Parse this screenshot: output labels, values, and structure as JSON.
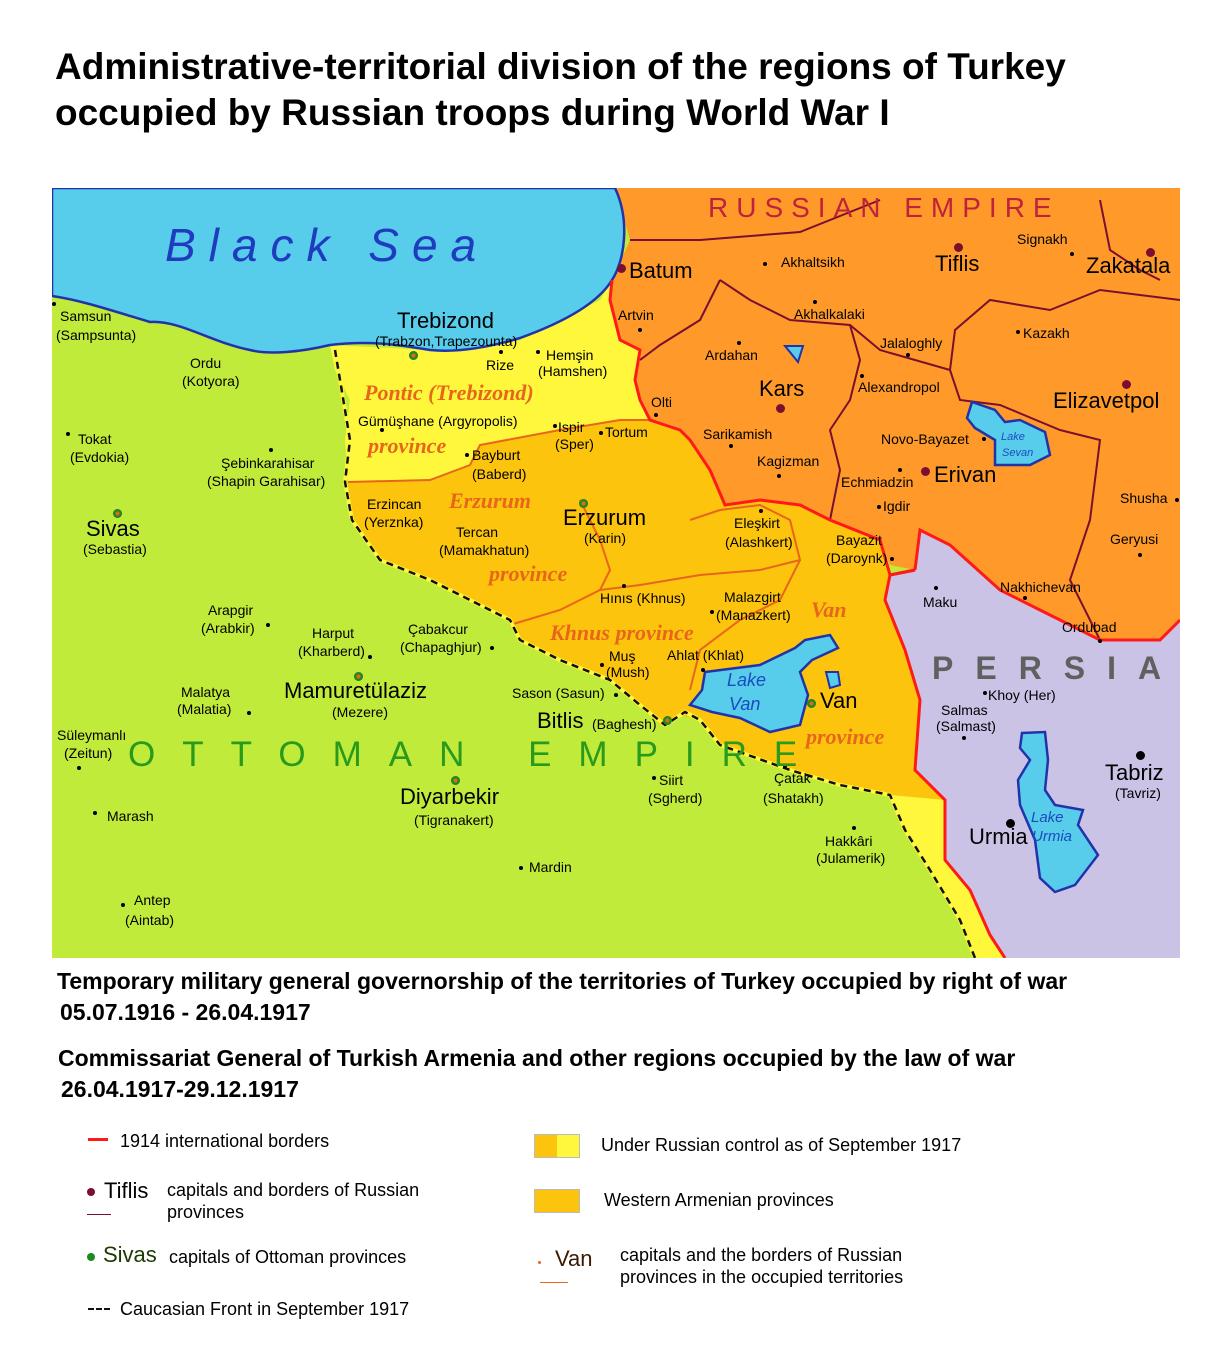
{
  "title": {
    "line1": "Administrative-territorial division of the regions of Turkey",
    "line2": "occupied by Russian troops during World War I"
  },
  "map": {
    "regions": {
      "sea": "Black Sea",
      "russia": "RUSSIAN EMPIRE",
      "ottoman": "OTTOMAN EMPIRE",
      "persia": "PERSIA"
    },
    "colors": {
      "sea": "#58cceb",
      "ottoman": "#c0eb3a",
      "pontic": "#fff73c",
      "western_armenia": "#fcc40c",
      "russia": "#ff9a2a",
      "persia": "#cbc3e6",
      "border_1914": "#ff1a1a",
      "russian_province_border": "#7a0f30",
      "occupied_province_border": "#e8661c"
    },
    "provinces": {
      "pontic": "Pontic (Trebizond)",
      "pontic_2": "province",
      "erzurum": "Erzurum",
      "erzurum_2": "province",
      "khnus": "Khnus province",
      "van": "Van",
      "van_2": "province"
    },
    "lakes": {
      "van_1": "Lake",
      "van_2": "Van",
      "sevan_1": "Lake",
      "sevan_2": "Sevan",
      "urmia_1": "Lake",
      "urmia_2": "Urmia"
    },
    "places": {
      "samsun": {
        "name": "Samsun",
        "alt": "(Sampsunta)"
      },
      "trebizond": {
        "name": "Trebizond",
        "alt": "(Trabzon,Trapezounta)"
      },
      "rize": {
        "name": "Rize"
      },
      "hemsin": {
        "name": "Hemşin",
        "alt": "(Hamshen)"
      },
      "ordu": {
        "name": "Ordu",
        "alt": "(Kotyora)"
      },
      "tokat": {
        "name": "Tokat",
        "alt": "(Evdokia)"
      },
      "sebinkarahisar": {
        "name": "Şebinkarahisar",
        "alt": "(Shapin Garahisar)"
      },
      "sivas": {
        "name": "Sivas",
        "alt": "(Sebastia)"
      },
      "gumushane": {
        "name": "Gümüşhane (Argyropolis)"
      },
      "ispir": {
        "name": "Ispir",
        "alt": "(Sper)"
      },
      "tortum": {
        "name": "Tortum"
      },
      "bayburt": {
        "name": "Bayburt",
        "alt": "(Baberd)"
      },
      "artvin": {
        "name": "Artvin"
      },
      "olti": {
        "name": "Olti"
      },
      "erzincan": {
        "name": "Erzincan",
        "alt": "(Yerznka)"
      },
      "tercan": {
        "name": "Tercan",
        "alt": "(Mamakhatun)"
      },
      "erzurum": {
        "name": "Erzurum",
        "alt": "(Karin)"
      },
      "eleskirt": {
        "name": "Eleşkirt",
        "alt": "(Alashkert)"
      },
      "bayazit": {
        "name": "Bayazit",
        "alt": "(Daroynk)"
      },
      "hinis": {
        "name": "Hınıs (Khnus)"
      },
      "malazgirt": {
        "name": "Malazgirt",
        "alt": "(Manazkert)"
      },
      "mus": {
        "name": "Muş",
        "alt": "(Mush)"
      },
      "ahlat": {
        "name": "Ahlat (Khlat)"
      },
      "sason": {
        "name": "Sason (Sasun)"
      },
      "bitlis": {
        "name": "Bitlis",
        "alt": "(Baghesh)"
      },
      "van": {
        "name": "Van"
      },
      "arapgir": {
        "name": "Arapgir",
        "alt": "(Arabkir)"
      },
      "harput": {
        "name": "Harput",
        "alt": "(Kharberd)"
      },
      "cabakcur": {
        "name": "Çabakcur",
        "alt": "(Chapaghjur)"
      },
      "mamuretulaziz": {
        "name": "Mamuretülaziz",
        "alt": "(Mezere)"
      },
      "malatya": {
        "name": "Malatya",
        "alt": "(Malatia)"
      },
      "suleymanli": {
        "name": "Süleymanlı",
        "alt": "(Zeitun)"
      },
      "marash": {
        "name": "Marash"
      },
      "diyarbekir": {
        "name": "Diyarbekir",
        "alt": "(Tigranakert)"
      },
      "siirt": {
        "name": "Siirt",
        "alt": "(Sgherd)"
      },
      "catak": {
        "name": "Çatak",
        "alt": "(Shatakh)"
      },
      "hakkari": {
        "name": "Hakkâri",
        "alt": "(Julamerik)"
      },
      "mardin": {
        "name": "Mardin"
      },
      "antep": {
        "name": "Antep",
        "alt": "(Aintab)"
      },
      "batum": {
        "name": "Batum"
      },
      "akhaltsikh": {
        "name": "Akhaltsikh"
      },
      "tiflis": {
        "name": "Tiflis"
      },
      "signakh": {
        "name": "Signakh"
      },
      "zakatala": {
        "name": "Zakatala"
      },
      "akhalkalaki": {
        "name": "Akhalkalaki"
      },
      "ardahan": {
        "name": "Ardahan"
      },
      "jalaloghly": {
        "name": "Jalaloghly"
      },
      "kazakh": {
        "name": "Kazakh"
      },
      "kars": {
        "name": "Kars"
      },
      "alexandropol": {
        "name": "Alexandropol"
      },
      "elizavetpol": {
        "name": "Elizavetpol"
      },
      "sarikamish": {
        "name": "Sarikamish"
      },
      "novobayazet": {
        "name": "Novo-Bayazet"
      },
      "kagizman": {
        "name": "Kagizman"
      },
      "echmiadzin": {
        "name": "Echmiadzin"
      },
      "erivan": {
        "name": "Erivan"
      },
      "igdir": {
        "name": "Igdir"
      },
      "shusha": {
        "name": "Shusha"
      },
      "geryusi": {
        "name": "Geryusi"
      },
      "maku": {
        "name": "Maku"
      },
      "nakhichevan": {
        "name": "Nakhichevan"
      },
      "ordubad": {
        "name": "Ordubad"
      },
      "khoy": {
        "name": "Khoy (Her)"
      },
      "salmas": {
        "name": "Salmas",
        "alt": "(Salmast)"
      },
      "tabriz": {
        "name": "Tabriz",
        "alt": "(Tavriz)"
      },
      "urmia": {
        "name": "Urmia"
      }
    }
  },
  "footer": {
    "governorship": {
      "line1": "Temporary military general governorship of the territories of Turkey occupied by right of war",
      "line2": "05.07.1916 - 26.04.1917"
    },
    "commissariat": {
      "line1": "Commissariat General of Turkish Armenia and other regions occupied by the law of war",
      "line2": "26.04.1917-29.12.1917"
    }
  },
  "legend": {
    "borders_1914": "1914 international borders",
    "russian_capitals_sample": "Tiflis",
    "russian_capitals": "capitals and borders of Russian provinces",
    "ottoman_capitals_sample": "Sivas",
    "ottoman_capitals": "capitals of Ottoman provinces",
    "front": "Caucasian Front in September 1917",
    "russian_control": "Under Russian control as of September 1917",
    "western_armenian": "Western Armenian provinces",
    "occupied_capitals_sample": "Van",
    "occupied_capitals": "capitals and the borders of Russian provinces in the occupied territories"
  }
}
